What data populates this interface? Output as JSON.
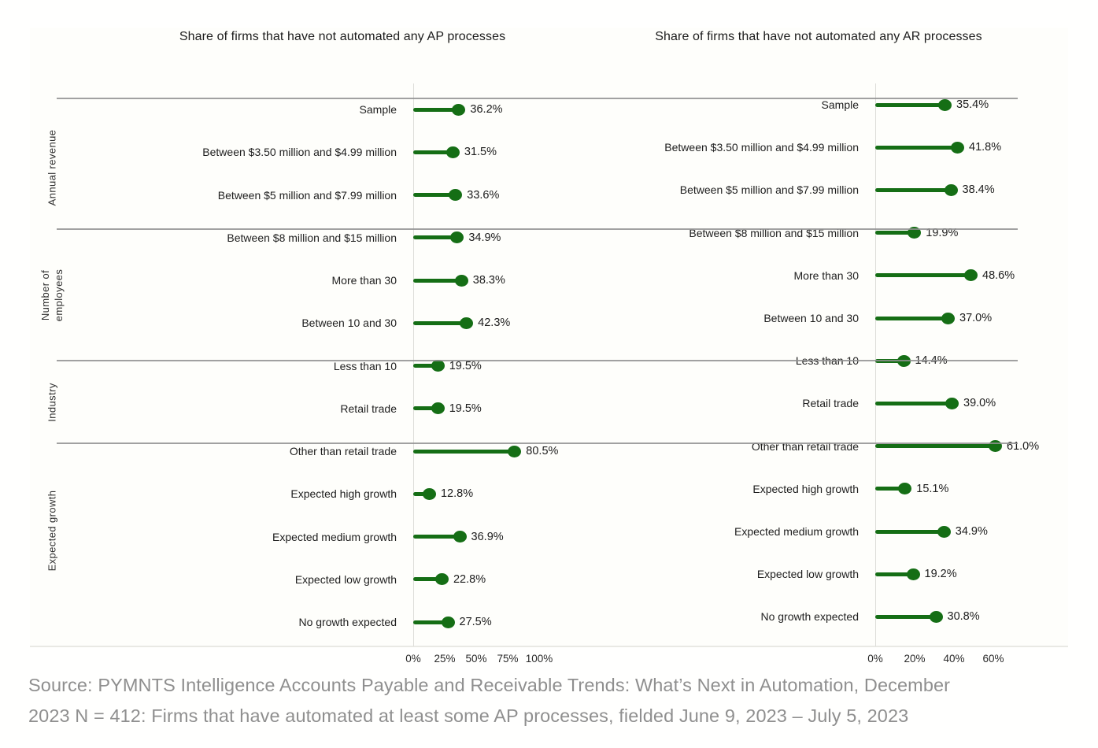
{
  "accent_color": "#156e15",
  "chart_data": [
    {
      "type": "bar",
      "variant": "horizontal-lollipop",
      "title": "Share of firms that have not automated any AP processes",
      "xlabel": "",
      "unit": "%",
      "x_ticks": [
        "0%",
        "25%",
        "50%",
        "75%",
        "100%"
      ],
      "xlim": [
        0,
        100
      ],
      "legend": "none",
      "grid": "off",
      "groups": [
        {
          "section": "",
          "rows": [
            {
              "label": "Sample",
              "value": 36.2
            }
          ]
        },
        {
          "section": "Annual revenue",
          "rows": [
            {
              "label": "Between $3.50 million and $4.99 million",
              "value": 31.5
            },
            {
              "label": "Between $5 million and $7.99 million",
              "value": 33.6
            },
            {
              "label": "Between $8 million and $15 million",
              "value": 34.9
            }
          ]
        },
        {
          "section": "Number of\nemployees",
          "rows": [
            {
              "label": "More than 30",
              "value": 38.3
            },
            {
              "label": "Between 10 and 30",
              "value": 42.3
            },
            {
              "label": "Less than 10",
              "value": 19.5
            }
          ]
        },
        {
          "section": "Industry",
          "rows": [
            {
              "label": "Retail trade",
              "value": 19.5
            },
            {
              "label": "Other than retail trade",
              "value": 80.5
            }
          ]
        },
        {
          "section": "Expected growth",
          "rows": [
            {
              "label": "Expected high growth",
              "value": 12.8
            },
            {
              "label": "Expected medium growth",
              "value": 36.9
            },
            {
              "label": "Expected low growth",
              "value": 22.8
            },
            {
              "label": "No growth expected",
              "value": 27.5
            }
          ]
        }
      ]
    },
    {
      "type": "bar",
      "variant": "horizontal-lollipop",
      "title": "Share of firms that have not automated any AR processes",
      "xlabel": "",
      "unit": "%",
      "x_ticks": [
        "0%",
        "20%",
        "40%",
        "60%"
      ],
      "xlim": [
        0,
        64
      ],
      "legend": "none",
      "grid": "off",
      "groups": [
        {
          "section": "",
          "rows": [
            {
              "label": "Sample",
              "value": 35.4
            }
          ]
        },
        {
          "section": "Annual revenue",
          "rows": [
            {
              "label": "Between $3.50 million and $4.99 million",
              "value": 41.8
            },
            {
              "label": "Between $5 million and $7.99 million",
              "value": 38.4
            },
            {
              "label": "Between $8 million and $15 million",
              "value": 19.9
            }
          ]
        },
        {
          "section": "Number of\nemployees",
          "rows": [
            {
              "label": "More than 30",
              "value": 48.6
            },
            {
              "label": "Between 10 and 30",
              "value": 37.0
            },
            {
              "label": "Less than 10",
              "value": 14.4
            }
          ]
        },
        {
          "section": "Industry",
          "rows": [
            {
              "label": "Retail trade",
              "value": 39.0
            },
            {
              "label": "Other than retail trade",
              "value": 61.0
            }
          ]
        },
        {
          "section": "Expected growth",
          "rows": [
            {
              "label": "Expected high growth",
              "value": 15.1
            },
            {
              "label": "Expected medium growth",
              "value": 34.9
            },
            {
              "label": "Expected low growth",
              "value": 19.2
            },
            {
              "label": "No growth expected",
              "value": 30.8
            }
          ]
        }
      ]
    }
  ],
  "source_text": {
    "line1": "Source: PYMNTS Intelligence Accounts Payable and Receivable Trends: What’s Next in Automation, December",
    "line2": "2023 N = 412: Firms that have automated at least some AP processes, fielded June 9, 2023 – July 5, 2023"
  }
}
